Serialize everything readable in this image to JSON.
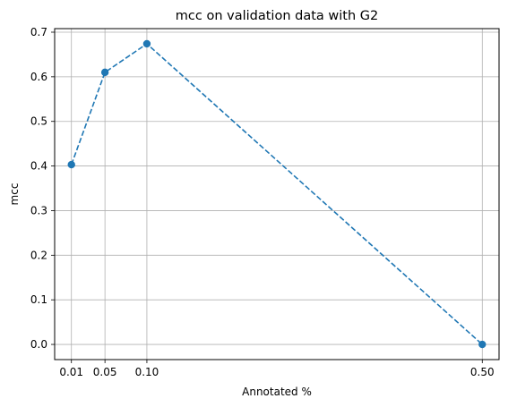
{
  "chart_data": {
    "type": "line",
    "title": "mcc on validation data with G2",
    "xlabel": "Annotated %",
    "ylabel": "mcc",
    "x_ticks": [
      "0.01",
      "0.05",
      "0.10",
      "0.50"
    ],
    "y_ticks": [
      "0.0",
      "0.1",
      "0.2",
      "0.3",
      "0.4",
      "0.5",
      "0.6",
      "0.7"
    ],
    "xlim": [
      -0.01,
      0.52
    ],
    "ylim": [
      -0.034,
      0.708
    ],
    "grid": true,
    "series": [
      {
        "x": [
          0.01,
          0.05,
          0.1,
          0.5
        ],
        "y": [
          0.403,
          0.61,
          0.674,
          0.0
        ],
        "color": "#1f77b4",
        "line_style": "dashed",
        "marker": "circle"
      }
    ]
  }
}
